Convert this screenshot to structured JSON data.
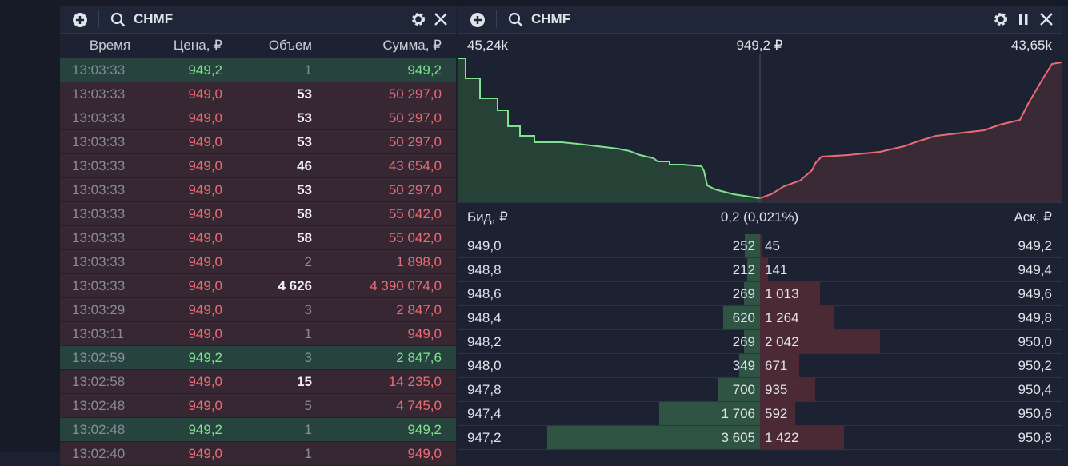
{
  "trades_panel": {
    "ticker": "CHMF",
    "columns": [
      "Время",
      "Цена, ₽",
      "Объем",
      "Сумма, ₽"
    ],
    "rows": [
      {
        "time": "13:03:33",
        "price": "949,2",
        "volume": "1",
        "sum": "949,2",
        "side": "buy",
        "bold": false
      },
      {
        "time": "13:03:33",
        "price": "949,0",
        "volume": "53",
        "sum": "50 297,0",
        "side": "sell",
        "bold": true
      },
      {
        "time": "13:03:33",
        "price": "949,0",
        "volume": "53",
        "sum": "50 297,0",
        "side": "sell",
        "bold": true
      },
      {
        "time": "13:03:33",
        "price": "949,0",
        "volume": "53",
        "sum": "50 297,0",
        "side": "sell",
        "bold": true
      },
      {
        "time": "13:03:33",
        "price": "949,0",
        "volume": "46",
        "sum": "43 654,0",
        "side": "sell",
        "bold": true
      },
      {
        "time": "13:03:33",
        "price": "949,0",
        "volume": "53",
        "sum": "50 297,0",
        "side": "sell",
        "bold": true
      },
      {
        "time": "13:03:33",
        "price": "949,0",
        "volume": "58",
        "sum": "55 042,0",
        "side": "sell",
        "bold": true
      },
      {
        "time": "13:03:33",
        "price": "949,0",
        "volume": "58",
        "sum": "55 042,0",
        "side": "sell",
        "bold": true
      },
      {
        "time": "13:03:33",
        "price": "949,0",
        "volume": "2",
        "sum": "1 898,0",
        "side": "sell",
        "bold": false
      },
      {
        "time": "13:03:33",
        "price": "949,0",
        "volume": "4 626",
        "sum": "4 390 074,0",
        "side": "sell",
        "bold": true
      },
      {
        "time": "13:03:29",
        "price": "949,0",
        "volume": "3",
        "sum": "2 847,0",
        "side": "sell",
        "bold": false
      },
      {
        "time": "13:03:11",
        "price": "949,0",
        "volume": "1",
        "sum": "949,0",
        "side": "sell",
        "bold": false
      },
      {
        "time": "13:02:59",
        "price": "949,2",
        "volume": "3",
        "sum": "2 847,6",
        "side": "buy",
        "bold": false
      },
      {
        "time": "13:02:58",
        "price": "949,0",
        "volume": "15",
        "sum": "14 235,0",
        "side": "sell",
        "bold": true
      },
      {
        "time": "13:02:48",
        "price": "949,0",
        "volume": "5",
        "sum": "4 745,0",
        "side": "sell",
        "bold": false
      },
      {
        "time": "13:02:48",
        "price": "949,2",
        "volume": "1",
        "sum": "949,2",
        "side": "buy",
        "bold": false
      },
      {
        "time": "13:02:40",
        "price": "949,0",
        "volume": "1",
        "sum": "949,0",
        "side": "sell",
        "bold": false
      }
    ]
  },
  "orderbook_panel": {
    "ticker": "CHMF",
    "depth_left": "45,24k",
    "mid_price": "949,2 ₽",
    "depth_right": "43,65k",
    "bid_header": "Бид, ₽",
    "spread": "0,2 (0,021%)",
    "ask_header": "Аск, ₽",
    "rows": [
      {
        "bid_price": "949,0",
        "bid_volume": "252",
        "ask_volume": "45",
        "ask_price": "949,2"
      },
      {
        "bid_price": "948,8",
        "bid_volume": "212",
        "ask_volume": "141",
        "ask_price": "949,4"
      },
      {
        "bid_price": "948,6",
        "bid_volume": "269",
        "ask_volume": "1 013",
        "ask_price": "949,6"
      },
      {
        "bid_price": "948,4",
        "bid_volume": "620",
        "ask_volume": "1 264",
        "ask_price": "949,8"
      },
      {
        "bid_price": "948,2",
        "bid_volume": "269",
        "ask_volume": "2 042",
        "ask_price": "950,0"
      },
      {
        "bid_price": "948,0",
        "bid_volume": "349",
        "ask_volume": "671",
        "ask_price": "950,2"
      },
      {
        "bid_price": "947,8",
        "bid_volume": "700",
        "ask_volume": "935",
        "ask_price": "950,4"
      },
      {
        "bid_price": "947,4",
        "bid_volume": "1 706",
        "ask_volume": "592",
        "ask_price": "950,6"
      },
      {
        "bid_price": "947,2",
        "bid_volume": "3 605",
        "ask_volume": "1 422",
        "ask_price": "950,8"
      }
    ]
  }
}
